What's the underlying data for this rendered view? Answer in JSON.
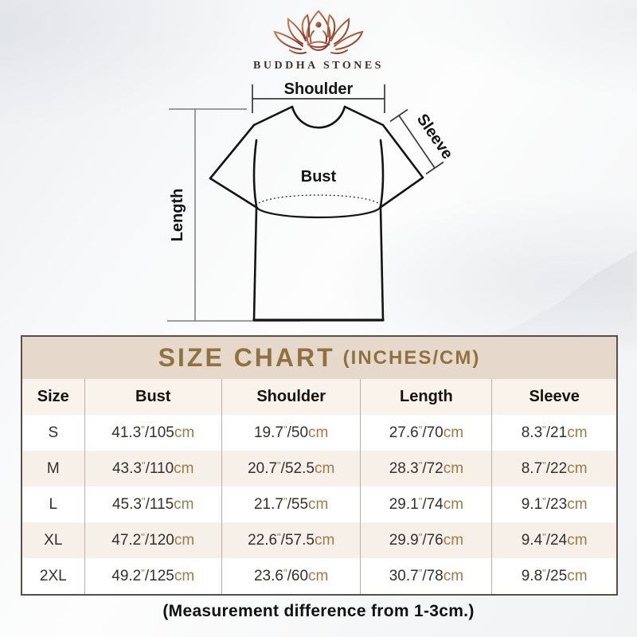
{
  "brand": {
    "name": "BUDDHA STONES",
    "logo_icon": "lotus-meditation-icon"
  },
  "diagram": {
    "labels": {
      "shoulder": "Shoulder",
      "sleeve": "Sleeve",
      "bust": "Bust",
      "length": "Length"
    }
  },
  "size_chart": {
    "title": "SIZE CHART",
    "title_suffix": "(INCHES/CM)",
    "columns": [
      "Size",
      "Bust",
      "Shoulder",
      "Length",
      "Sleeve"
    ],
    "units": {
      "inch_mark": "\"",
      "slash": "/",
      "cm": "cm"
    },
    "rows": [
      {
        "size": "S",
        "bust": {
          "in": "41.3",
          "cm": "105"
        },
        "shoulder": {
          "in": "19.7",
          "cm": "50"
        },
        "length": {
          "in": "27.6",
          "cm": "70"
        },
        "sleeve": {
          "in": "8.3",
          "cm": "21"
        }
      },
      {
        "size": "M",
        "bust": {
          "in": "43.3",
          "cm": "110"
        },
        "shoulder": {
          "in": "20.7",
          "cm": "52.5"
        },
        "length": {
          "in": "28.3",
          "cm": "72"
        },
        "sleeve": {
          "in": "8.7",
          "cm": "22"
        }
      },
      {
        "size": "L",
        "bust": {
          "in": "45.3",
          "cm": "115"
        },
        "shoulder": {
          "in": "21.7",
          "cm": "55"
        },
        "length": {
          "in": "29.1",
          "cm": "74"
        },
        "sleeve": {
          "in": "9.1",
          "cm": "23"
        }
      },
      {
        "size": "XL",
        "bust": {
          "in": "47.2",
          "cm": "120"
        },
        "shoulder": {
          "in": "22.6",
          "cm": "57.5"
        },
        "length": {
          "in": "29.9",
          "cm": "76"
        },
        "sleeve": {
          "in": "9.4",
          "cm": "24"
        }
      },
      {
        "size": "2XL",
        "bust": {
          "in": "49.2",
          "cm": "125"
        },
        "shoulder": {
          "in": "23.6",
          "cm": "60"
        },
        "length": {
          "in": "30.7",
          "cm": "78"
        },
        "sleeve": {
          "in": "9.8",
          "cm": "25"
        }
      }
    ]
  },
  "footer": {
    "note": "(Measurement difference from 1-3cm.)"
  },
  "colors": {
    "accent_gold": "#8e7340",
    "table_title_bg": "#e6d9cb",
    "row_alt_bg": "#f7f0e8",
    "header_row_bg": "#faf3ec",
    "unit_text": "#9c7b4a",
    "logo_gradient_start": "#c97f52",
    "logo_gradient_end": "#7e2d20"
  }
}
